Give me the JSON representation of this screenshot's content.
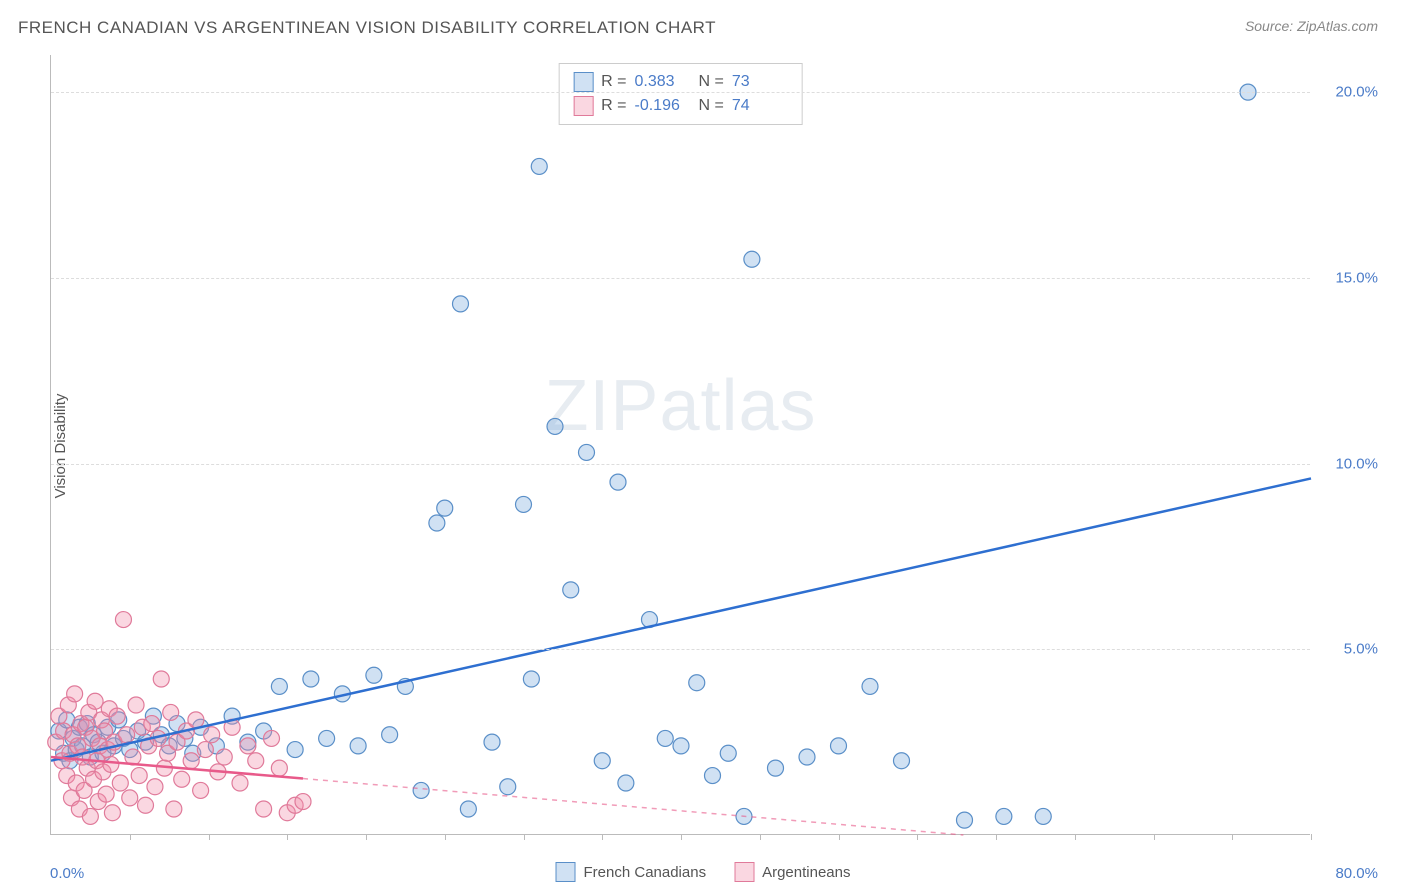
{
  "title": "FRENCH CANADIAN VS ARGENTINEAN VISION DISABILITY CORRELATION CHART",
  "source_label": "Source:",
  "source_name": "ZipAtlas.com",
  "y_axis_label": "Vision Disability",
  "watermark": {
    "part1": "ZIP",
    "part2": "atlas"
  },
  "chart": {
    "type": "scatter",
    "xlim": [
      0,
      80
    ],
    "ylim": [
      0,
      21
    ],
    "x_tick_step": 5,
    "y_ticks": [
      5,
      10,
      15,
      20
    ],
    "y_tick_labels": [
      "5.0%",
      "10.0%",
      "15.0%",
      "20.0%"
    ],
    "x_min_label": "0.0%",
    "x_max_label": "80.0%",
    "background_color": "#ffffff",
    "grid_color": "#dddddd",
    "axis_color": "#bbbbbb",
    "tick_label_color": "#4a7bc8",
    "marker_radius": 8,
    "marker_stroke_width": 1.2,
    "trend_line_width": 2.5,
    "series": [
      {
        "name": "French Canadians",
        "fill_color": "rgba(120,170,220,0.35)",
        "stroke_color": "#5a8fc8",
        "trend_color": "#2e6fd0",
        "trend_dashed_after_x": null,
        "trend": {
          "x1": 0,
          "y1": 2.0,
          "x2": 80,
          "y2": 9.6
        },
        "R": 0.383,
        "N": 73,
        "points": [
          [
            0.5,
            2.8
          ],
          [
            0.8,
            2.2
          ],
          [
            1.0,
            3.1
          ],
          [
            1.2,
            2.0
          ],
          [
            1.4,
            2.6
          ],
          [
            1.6,
            2.3
          ],
          [
            1.8,
            2.9
          ],
          [
            2.0,
            2.4
          ],
          [
            2.3,
            3.0
          ],
          [
            2.5,
            2.1
          ],
          [
            2.7,
            2.7
          ],
          [
            3.0,
            2.5
          ],
          [
            3.3,
            2.2
          ],
          [
            3.6,
            2.9
          ],
          [
            4.0,
            2.4
          ],
          [
            4.3,
            3.1
          ],
          [
            4.6,
            2.6
          ],
          [
            5.0,
            2.3
          ],
          [
            5.5,
            2.8
          ],
          [
            6.0,
            2.5
          ],
          [
            6.5,
            3.2
          ],
          [
            7.0,
            2.7
          ],
          [
            7.5,
            2.4
          ],
          [
            8.0,
            3.0
          ],
          [
            8.5,
            2.6
          ],
          [
            9.0,
            2.2
          ],
          [
            9.5,
            2.9
          ],
          [
            10.5,
            2.4
          ],
          [
            11.5,
            3.2
          ],
          [
            12.5,
            2.5
          ],
          [
            13.5,
            2.8
          ],
          [
            14.5,
            4.0
          ],
          [
            15.5,
            2.3
          ],
          [
            16.5,
            4.2
          ],
          [
            17.5,
            2.6
          ],
          [
            18.5,
            3.8
          ],
          [
            19.5,
            2.4
          ],
          [
            20.5,
            4.3
          ],
          [
            21.5,
            2.7
          ],
          [
            22.5,
            4.0
          ],
          [
            23.5,
            1.2
          ],
          [
            24.5,
            8.4
          ],
          [
            25.0,
            8.8
          ],
          [
            26.0,
            14.3
          ],
          [
            26.5,
            0.7
          ],
          [
            28.0,
            2.5
          ],
          [
            29.0,
            1.3
          ],
          [
            30.0,
            8.9
          ],
          [
            30.5,
            4.2
          ],
          [
            31.0,
            18.0
          ],
          [
            32.0,
            11.0
          ],
          [
            33.0,
            6.6
          ],
          [
            34.0,
            10.3
          ],
          [
            35.0,
            2.0
          ],
          [
            36.0,
            9.5
          ],
          [
            36.5,
            1.4
          ],
          [
            38.0,
            5.8
          ],
          [
            39.0,
            2.6
          ],
          [
            40.0,
            2.4
          ],
          [
            41.0,
            4.1
          ],
          [
            42.0,
            1.6
          ],
          [
            43.0,
            2.2
          ],
          [
            44.0,
            0.5
          ],
          [
            44.5,
            15.5
          ],
          [
            46.0,
            1.8
          ],
          [
            48.0,
            2.1
          ],
          [
            50.0,
            2.4
          ],
          [
            52.0,
            4.0
          ],
          [
            54.0,
            2.0
          ],
          [
            58.0,
            0.4
          ],
          [
            60.5,
            0.5
          ],
          [
            63.0,
            0.5
          ],
          [
            76.0,
            20.0
          ]
        ]
      },
      {
        "name": "Argentineans",
        "fill_color": "rgba(240,140,170,0.35)",
        "stroke_color": "#e07a9a",
        "trend_color": "#e85a8a",
        "trend_dashed_after_x": 16,
        "trend": {
          "x1": 0,
          "y1": 2.1,
          "x2": 80,
          "y2": -0.8
        },
        "R": -0.196,
        "N": 74,
        "points": [
          [
            0.3,
            2.5
          ],
          [
            0.5,
            3.2
          ],
          [
            0.7,
            2.0
          ],
          [
            0.8,
            2.8
          ],
          [
            1.0,
            1.6
          ],
          [
            1.1,
            3.5
          ],
          [
            1.2,
            2.2
          ],
          [
            1.3,
            1.0
          ],
          [
            1.4,
            2.7
          ],
          [
            1.5,
            3.8
          ],
          [
            1.6,
            1.4
          ],
          [
            1.7,
            2.4
          ],
          [
            1.8,
            0.7
          ],
          [
            1.9,
            3.0
          ],
          [
            2.0,
            2.1
          ],
          [
            2.1,
            1.2
          ],
          [
            2.2,
            2.9
          ],
          [
            2.3,
            1.8
          ],
          [
            2.4,
            3.3
          ],
          [
            2.5,
            0.5
          ],
          [
            2.6,
            2.6
          ],
          [
            2.7,
            1.5
          ],
          [
            2.8,
            3.6
          ],
          [
            2.9,
            2.0
          ],
          [
            3.0,
            0.9
          ],
          [
            3.1,
            2.4
          ],
          [
            3.2,
            3.1
          ],
          [
            3.3,
            1.7
          ],
          [
            3.4,
            2.8
          ],
          [
            3.5,
            1.1
          ],
          [
            3.6,
            2.3
          ],
          [
            3.7,
            3.4
          ],
          [
            3.8,
            1.9
          ],
          [
            3.9,
            0.6
          ],
          [
            4.0,
            2.5
          ],
          [
            4.2,
            3.2
          ],
          [
            4.4,
            1.4
          ],
          [
            4.6,
            5.8
          ],
          [
            4.8,
            2.7
          ],
          [
            5.0,
            1.0
          ],
          [
            5.2,
            2.1
          ],
          [
            5.4,
            3.5
          ],
          [
            5.6,
            1.6
          ],
          [
            5.8,
            2.9
          ],
          [
            6.0,
            0.8
          ],
          [
            6.2,
            2.4
          ],
          [
            6.4,
            3.0
          ],
          [
            6.6,
            1.3
          ],
          [
            6.8,
            2.6
          ],
          [
            7.0,
            4.2
          ],
          [
            7.2,
            1.8
          ],
          [
            7.4,
            2.2
          ],
          [
            7.6,
            3.3
          ],
          [
            7.8,
            0.7
          ],
          [
            8.0,
            2.5
          ],
          [
            8.3,
            1.5
          ],
          [
            8.6,
            2.8
          ],
          [
            8.9,
            2.0
          ],
          [
            9.2,
            3.1
          ],
          [
            9.5,
            1.2
          ],
          [
            9.8,
            2.3
          ],
          [
            10.2,
            2.7
          ],
          [
            10.6,
            1.7
          ],
          [
            11.0,
            2.1
          ],
          [
            11.5,
            2.9
          ],
          [
            12.0,
            1.4
          ],
          [
            12.5,
            2.4
          ],
          [
            13.0,
            2.0
          ],
          [
            13.5,
            0.7
          ],
          [
            14.0,
            2.6
          ],
          [
            14.5,
            1.8
          ],
          [
            15.0,
            0.6
          ],
          [
            15.5,
            0.8
          ],
          [
            16.0,
            0.9
          ]
        ]
      }
    ]
  },
  "legend_top": {
    "r_label": "R =",
    "n_label": "N ="
  },
  "legend_bottom": [
    {
      "label": "French Canadians",
      "series_index": 0
    },
    {
      "label": "Argentineans",
      "series_index": 1
    }
  ]
}
